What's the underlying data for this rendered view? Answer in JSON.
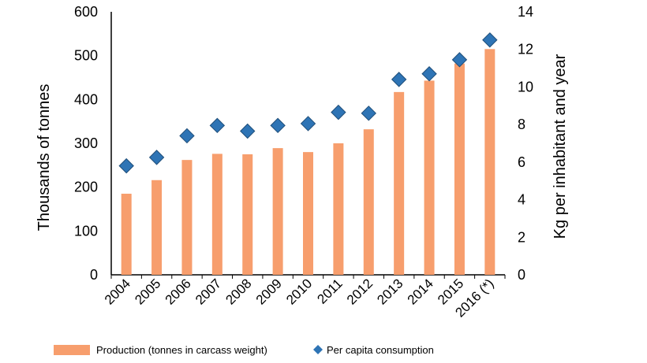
{
  "chart_data": {
    "type": "bar",
    "categories": [
      "2004",
      "2005",
      "2006",
      "2007",
      "2008",
      "2009",
      "2010",
      "2011",
      "2012",
      "2013",
      "2014",
      "2015",
      "2016 (*)"
    ],
    "series": [
      {
        "name": "Production (tonnes in carcass weight)",
        "type": "bar",
        "axis": "left",
        "color": "#F79E6D",
        "values": [
          185,
          216,
          262,
          276,
          275,
          289,
          280,
          300,
          332,
          417,
          443,
          482,
          515
        ]
      },
      {
        "name": "Per capita consumption",
        "type": "scatter",
        "marker": "diamond",
        "axis": "right",
        "color": "#2E74B5",
        "values": [
          5.8,
          6.25,
          7.4,
          7.95,
          7.65,
          7.95,
          8.05,
          8.65,
          8.6,
          10.4,
          10.7,
          11.45,
          12.5
        ]
      }
    ],
    "ylabel": "Thousands of tonnes",
    "ylim": [
      0,
      600
    ],
    "yticks": [
      "0",
      "100",
      "200",
      "300",
      "400",
      "500",
      "600"
    ],
    "y2label": "Kg per inhabitant and year",
    "y2lim": [
      0,
      14
    ],
    "y2ticks": [
      "0",
      "2",
      "4",
      "6",
      "8",
      "10",
      "12",
      "14"
    ],
    "legend_position": "bottom"
  }
}
